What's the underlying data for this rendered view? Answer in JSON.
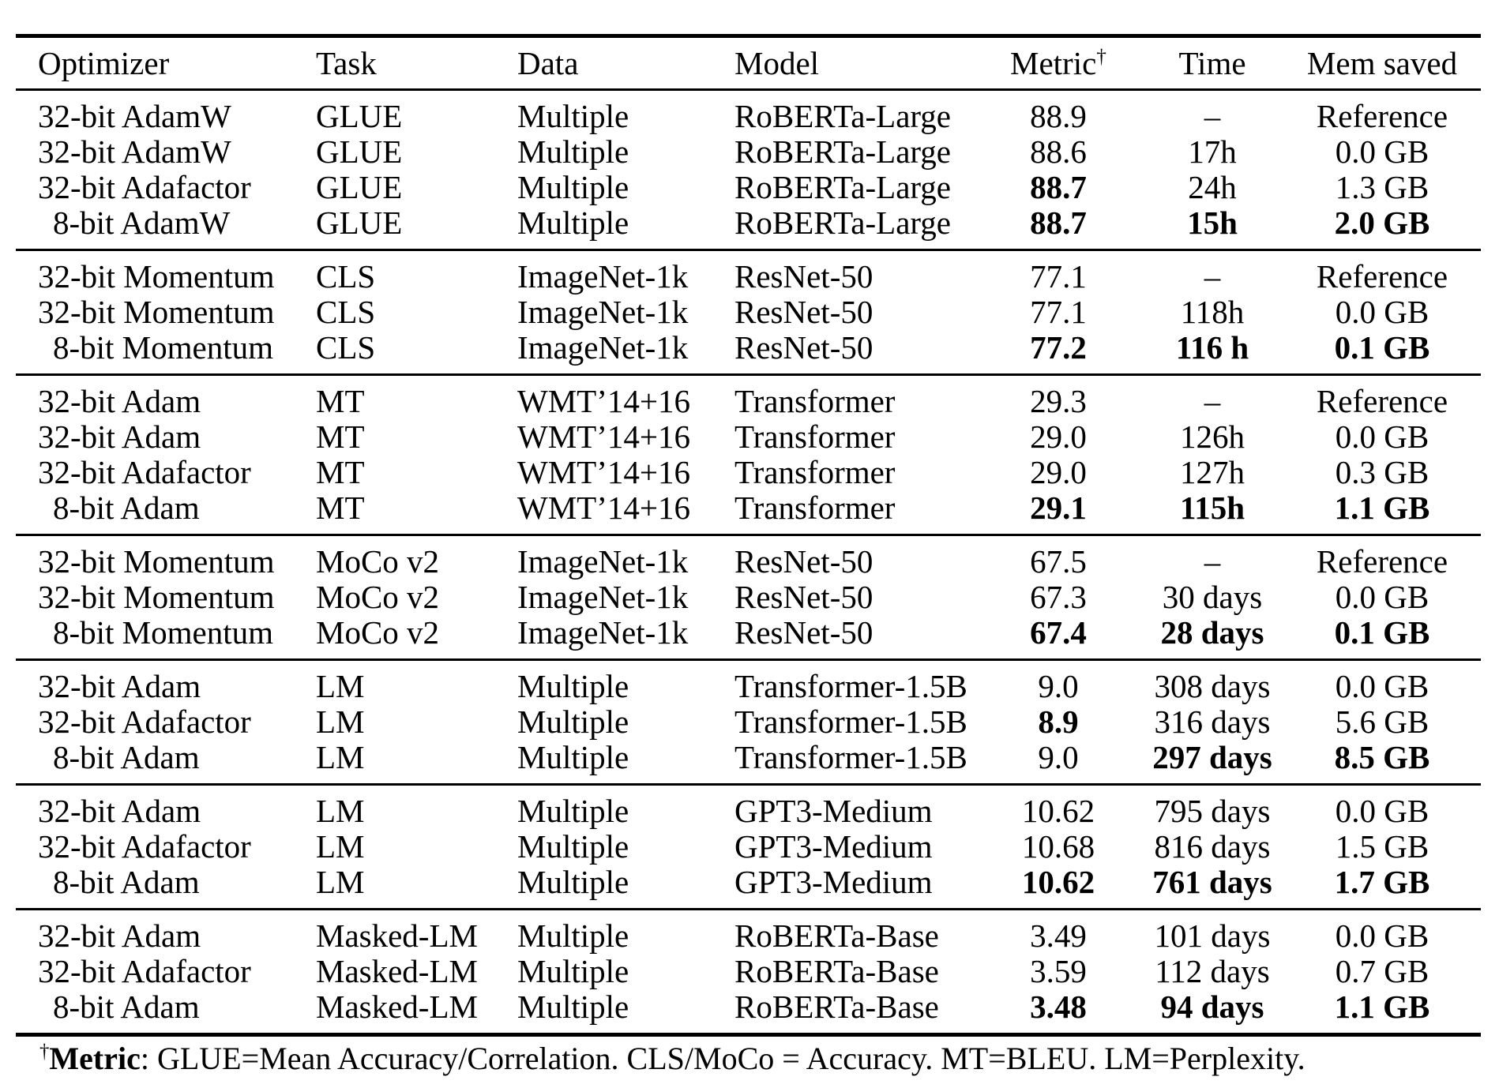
{
  "table": {
    "columns": [
      {
        "key": "optimizer",
        "label": "Optimizer"
      },
      {
        "key": "task",
        "label": "Task"
      },
      {
        "key": "data",
        "label": "Data"
      },
      {
        "key": "model",
        "label": "Model"
      },
      {
        "key": "metric",
        "label": "Metric",
        "superscript": "†"
      },
      {
        "key": "time",
        "label": "Time"
      },
      {
        "key": "mem-saved",
        "label": "Mem saved"
      }
    ],
    "groups": [
      {
        "rows": [
          {
            "cells": [
              "32-bit AdamW",
              "GLUE",
              "Multiple",
              "RoBERTa-Large",
              "88.9",
              "–",
              "Reference"
            ],
            "bold": []
          },
          {
            "cells": [
              "32-bit AdamW",
              "GLUE",
              "Multiple",
              "RoBERTa-Large",
              "88.6",
              "17h",
              "0.0 GB"
            ],
            "bold": []
          },
          {
            "cells": [
              "32-bit Adafactor",
              "GLUE",
              "Multiple",
              "RoBERTa-Large",
              "88.7",
              "24h",
              "1.3 GB"
            ],
            "bold": [
              4
            ]
          },
          {
            "cells": [
              "8-bit AdamW",
              "GLUE",
              "Multiple",
              "RoBERTa-Large",
              "88.7",
              "15h",
              "2.0 GB"
            ],
            "bold": [
              4,
              5,
              6
            ]
          }
        ]
      },
      {
        "rows": [
          {
            "cells": [
              "32-bit Momentum",
              "CLS",
              "ImageNet-1k",
              "ResNet-50",
              "77.1",
              "–",
              "Reference"
            ],
            "bold": []
          },
          {
            "cells": [
              "32-bit Momentum",
              "CLS",
              "ImageNet-1k",
              "ResNet-50",
              "77.1",
              "118h",
              "0.0 GB"
            ],
            "bold": []
          },
          {
            "cells": [
              "8-bit Momentum",
              "CLS",
              "ImageNet-1k",
              "ResNet-50",
              "77.2",
              "116 h",
              "0.1 GB"
            ],
            "bold": [
              4,
              5,
              6
            ]
          }
        ]
      },
      {
        "rows": [
          {
            "cells": [
              "32-bit Adam",
              "MT",
              "WMT’14+16",
              "Transformer",
              "29.3",
              "–",
              "Reference"
            ],
            "bold": []
          },
          {
            "cells": [
              "32-bit Adam",
              "MT",
              "WMT’14+16",
              "Transformer",
              "29.0",
              "126h",
              "0.0 GB"
            ],
            "bold": []
          },
          {
            "cells": [
              "32-bit Adafactor",
              "MT",
              "WMT’14+16",
              "Transformer",
              "29.0",
              "127h",
              "0.3 GB"
            ],
            "bold": []
          },
          {
            "cells": [
              "8-bit Adam",
              "MT",
              "WMT’14+16",
              "Transformer",
              "29.1",
              "115h",
              "1.1 GB"
            ],
            "bold": [
              4,
              5,
              6
            ]
          }
        ]
      },
      {
        "rows": [
          {
            "cells": [
              "32-bit Momentum",
              "MoCo v2",
              "ImageNet-1k",
              "ResNet-50",
              "67.5",
              "–",
              "Reference"
            ],
            "bold": []
          },
          {
            "cells": [
              "32-bit Momentum",
              "MoCo v2",
              "ImageNet-1k",
              "ResNet-50",
              "67.3",
              "30 days",
              "0.0 GB"
            ],
            "bold": []
          },
          {
            "cells": [
              "8-bit Momentum",
              "MoCo v2",
              "ImageNet-1k",
              "ResNet-50",
              "67.4",
              "28 days",
              "0.1 GB"
            ],
            "bold": [
              4,
              5,
              6
            ]
          }
        ]
      },
      {
        "rows": [
          {
            "cells": [
              "32-bit Adam",
              "LM",
              "Multiple",
              "Transformer-1.5B",
              "9.0",
              "308 days",
              "0.0 GB"
            ],
            "bold": []
          },
          {
            "cells": [
              "32-bit Adafactor",
              "LM",
              "Multiple",
              "Transformer-1.5B",
              "8.9",
              "316 days",
              "5.6 GB"
            ],
            "bold": [
              4
            ]
          },
          {
            "cells": [
              "8-bit Adam",
              "LM",
              "Multiple",
              "Transformer-1.5B",
              "9.0",
              "297 days",
              "8.5 GB"
            ],
            "bold": [
              5,
              6
            ]
          }
        ]
      },
      {
        "rows": [
          {
            "cells": [
              "32-bit Adam",
              "LM",
              "Multiple",
              "GPT3-Medium",
              "10.62",
              "795 days",
              "0.0 GB"
            ],
            "bold": []
          },
          {
            "cells": [
              "32-bit Adafactor",
              "LM",
              "Multiple",
              "GPT3-Medium",
              "10.68",
              "816 days",
              "1.5 GB"
            ],
            "bold": []
          },
          {
            "cells": [
              "8-bit Adam",
              "LM",
              "Multiple",
              "GPT3-Medium",
              "10.62",
              "761 days",
              "1.7 GB"
            ],
            "bold": [
              4,
              5,
              6
            ]
          }
        ]
      },
      {
        "rows": [
          {
            "cells": [
              "32-bit Adam",
              "Masked-LM",
              "Multiple",
              "RoBERTa-Base",
              "3.49",
              "101 days",
              "0.0 GB"
            ],
            "bold": []
          },
          {
            "cells": [
              "32-bit Adafactor",
              "Masked-LM",
              "Multiple",
              "RoBERTa-Base",
              "3.59",
              "112 days",
              "0.7 GB"
            ],
            "bold": []
          },
          {
            "cells": [
              "8-bit Adam",
              "Masked-LM",
              "Multiple",
              "RoBERTa-Base",
              "3.48",
              "94 days",
              "1.1 GB"
            ],
            "bold": [
              4,
              5,
              6
            ]
          }
        ]
      }
    ]
  },
  "footnote": {
    "dagger": "†",
    "term": "Metric",
    "rest": ": GLUE=Mean Accuracy/Correlation. CLS/MoCo = Accuracy. MT=BLEU. LM=Perplexity."
  }
}
